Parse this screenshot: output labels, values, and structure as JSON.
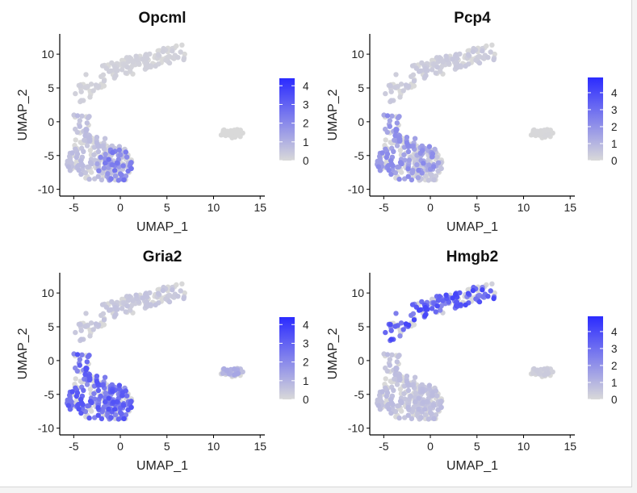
{
  "chart_data": [
    {
      "type": "scatter",
      "title": "Opcml",
      "xlabel": "UMAP_1",
      "ylabel": "UMAP_2",
      "xticks": [
        "-5",
        "0",
        "5",
        "10",
        "15"
      ],
      "yticks": [
        "10",
        "5",
        "0",
        "-5",
        "-10"
      ],
      "xlim": [
        -6.5,
        15.5
      ],
      "ylim": [
        -11,
        13
      ],
      "colorbar": {
        "ticks": [
          "4",
          "3",
          "2",
          "1",
          "0"
        ],
        "min": 0,
        "max": 4.4,
        "low_color": "#d9d9d9",
        "high_color": "#2b2bff",
        "placement": "right"
      },
      "expression": {
        "upper": 0.18,
        "lower_left": 0.55,
        "lower_right": 1.8,
        "island": 0.0
      }
    },
    {
      "type": "scatter",
      "title": "Pcp4",
      "xlabel": "UMAP_1",
      "ylabel": "UMAP_2",
      "xticks": [
        "-5",
        "0",
        "5",
        "10",
        "15"
      ],
      "yticks": [
        "10",
        "5",
        "0",
        "-5",
        "-10"
      ],
      "xlim": [
        -6.5,
        15.5
      ],
      "ylim": [
        -11,
        13
      ],
      "colorbar": {
        "ticks": [
          "4",
          "3",
          "2",
          "1",
          "0"
        ],
        "min": 0,
        "max": 4.9,
        "low_color": "#d9d9d9",
        "high_color": "#2b2bff",
        "placement": "right"
      },
      "expression": {
        "upper": 0.35,
        "lower_left": 1.6,
        "lower_right": 0.45,
        "island": 0.05
      }
    },
    {
      "type": "scatter",
      "title": "Gria2",
      "xlabel": "UMAP_1",
      "ylabel": "UMAP_2",
      "xticks": [
        "-5",
        "0",
        "5",
        "10",
        "15"
      ],
      "yticks": [
        "10",
        "5",
        "0",
        "-5",
        "-10"
      ],
      "xlim": [
        -6.5,
        15.5
      ],
      "ylim": [
        -11,
        13
      ],
      "colorbar": {
        "ticks": [
          "4",
          "3",
          "2",
          "1",
          "0"
        ],
        "min": 0,
        "max": 4.4,
        "low_color": "#d9d9d9",
        "high_color": "#2b2bff",
        "placement": "right"
      },
      "expression": {
        "upper": 0.4,
        "lower_left": 2.4,
        "lower_right": 2.4,
        "island": 0.9
      }
    },
    {
      "type": "scatter",
      "title": "Hmgb2",
      "xlabel": "UMAP_1",
      "ylabel": "UMAP_2",
      "xticks": [
        "-5",
        "0",
        "5",
        "10",
        "15"
      ],
      "yticks": [
        "10",
        "5",
        "0",
        "-5",
        "-10"
      ],
      "xlim": [
        -6.5,
        15.5
      ],
      "ylim": [
        -11,
        13
      ],
      "colorbar": {
        "ticks": [
          "4",
          "3",
          "2",
          "1",
          "0"
        ],
        "min": 0,
        "max": 4.9,
        "low_color": "#d9d9d9",
        "high_color": "#2b2bff",
        "placement": "right"
      },
      "expression": {
        "upper": 2.9,
        "lower_left": 0.6,
        "lower_right": 0.6,
        "island": 0.3
      }
    }
  ],
  "clusters": [
    {
      "name": "upper",
      "cx": 0.5,
      "cy": 8.5,
      "rx": 6.5,
      "ry": 3.5,
      "n": 150
    },
    {
      "name": "lower_left",
      "cx": -2.5,
      "cy": -5.5,
      "rx": 3.5,
      "ry": 3.2,
      "n": 170
    },
    {
      "name": "lower_right",
      "cx": -0.5,
      "cy": -6.5,
      "rx": 2.0,
      "ry": 2.5,
      "n": 80
    },
    {
      "name": "island",
      "cx": 12.0,
      "cy": -1.7,
      "rx": 1.3,
      "ry": 0.7,
      "n": 40
    }
  ]
}
